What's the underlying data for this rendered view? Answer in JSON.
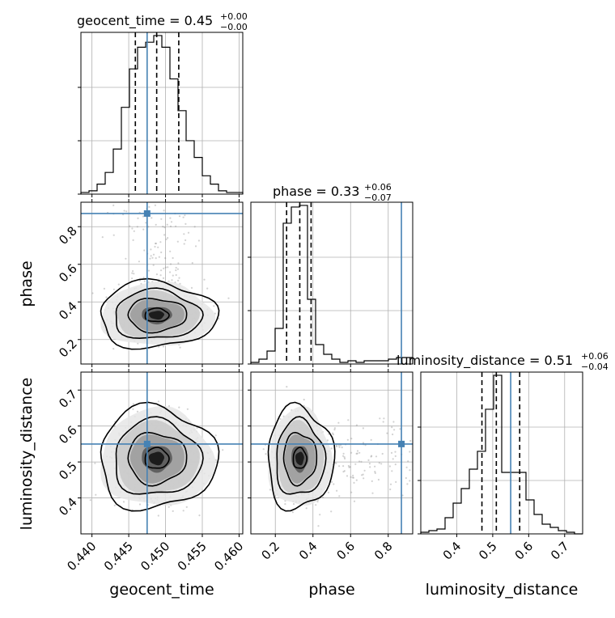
{
  "chart_data": {
    "type": "corner",
    "parameters": [
      "geocent_time",
      "phase",
      "luminosity_distance"
    ],
    "truths": {
      "geocent_time": 0.4475,
      "phase": 0.87,
      "luminosity_distance": 0.55
    },
    "titles": {
      "geocent_time": {
        "name": "geocent_time",
        "median": "0.45",
        "plus": "+0.00",
        "minus": "−0.00"
      },
      "phase": {
        "name": "phase",
        "median": "0.33",
        "plus": "+0.06",
        "minus": "−0.07"
      },
      "luminosity_distance": {
        "name": "luminosity_distance",
        "median": "0.51",
        "plus": "+0.06",
        "minus": "−0.04"
      }
    },
    "axis_labels": {
      "geocent_time": "geocent_time",
      "phase": "phase",
      "luminosity_distance": "luminosity_distance"
    },
    "ranges": {
      "geocent_time": [
        0.4385,
        0.4605
      ],
      "phase": [
        0.07,
        0.93
      ],
      "luminosity_distance": [
        0.3,
        0.75
      ]
    },
    "ticks": {
      "geocent_time": [
        0.44,
        0.445,
        0.45,
        0.455,
        0.46
      ],
      "phase": [
        0.2,
        0.4,
        0.6,
        0.8
      ],
      "luminosity_distance": [
        0.4,
        0.5,
        0.6,
        0.7
      ]
    },
    "tick_labels": {
      "geocent_time": [
        "0.440",
        "0.445",
        "0.450",
        "0.455",
        "0.460"
      ],
      "phase": [
        "0.2",
        "0.4",
        "0.6",
        "0.8"
      ],
      "luminosity_distance": [
        "0.4",
        "0.5",
        "0.6",
        "0.7"
      ]
    },
    "quantiles": {
      "geocent_time": [
        0.4459,
        0.4488,
        0.4518
      ],
      "phase": [
        0.26,
        0.33,
        0.39
      ],
      "luminosity_distance": [
        0.47,
        0.51,
        0.575
      ]
    },
    "histograms": {
      "geocent_time": {
        "edges": [
          0.4385,
          0.4396,
          0.4407,
          0.4418,
          0.4429,
          0.444,
          0.4451,
          0.4462,
          0.4473,
          0.4484,
          0.4495,
          0.4506,
          0.4517,
          0.4528,
          0.4539,
          0.455,
          0.4561,
          0.4572,
          0.4583,
          0.4594,
          0.4605
        ],
        "counts": [
          1,
          2,
          6,
          13,
          27,
          52,
          75,
          88,
          91,
          95,
          88,
          69,
          50,
          32,
          22,
          11,
          6,
          2,
          1,
          1
        ]
      },
      "phase": {
        "edges": [
          0.07,
          0.113,
          0.156,
          0.199,
          0.242,
          0.285,
          0.328,
          0.371,
          0.414,
          0.457,
          0.5,
          0.543,
          0.586,
          0.629,
          0.672,
          0.715,
          0.758,
          0.801,
          0.844,
          0.887,
          0.93
        ],
        "counts": [
          1,
          3,
          8,
          22,
          87,
          97,
          98,
          40,
          12,
          6,
          3,
          1,
          2,
          1,
          2,
          2,
          2,
          3,
          4,
          4
        ]
      },
      "luminosity_distance": {
        "edges": [
          0.3,
          0.3225,
          0.345,
          0.3675,
          0.39,
          0.4125,
          0.435,
          0.4575,
          0.48,
          0.5025,
          0.525,
          0.5475,
          0.57,
          0.5925,
          0.615,
          0.6375,
          0.66,
          0.6825,
          0.705,
          0.7275,
          0.75
        ],
        "counts": [
          1,
          2,
          3,
          10,
          19,
          28,
          40,
          51,
          77,
          98,
          38,
          38,
          38,
          21,
          12,
          6,
          4,
          2,
          1,
          0
        ]
      }
    },
    "colors": {
      "truth": "#4682b4",
      "hist": "#000000",
      "points": "#7f7f7f"
    }
  }
}
